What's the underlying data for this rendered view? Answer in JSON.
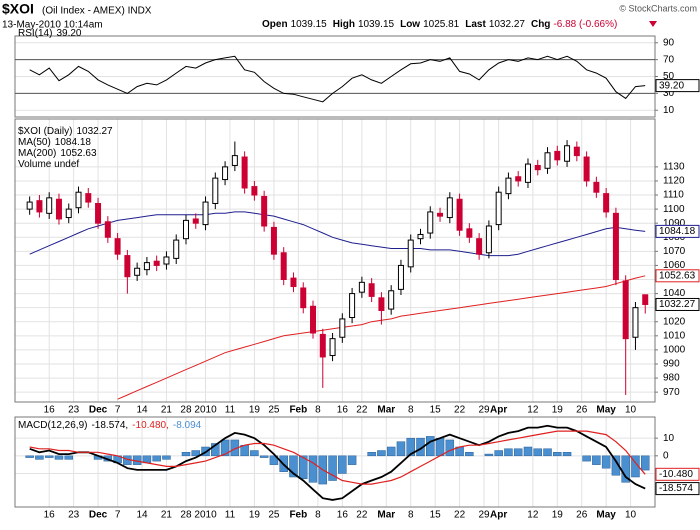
{
  "header": {
    "symbol": "$XOI",
    "name": "(Oil Index - AMEX) INDX",
    "date": "13-May-2010 10:14am",
    "watermark": "© StockCharts.com",
    "quote": [
      {
        "label": "Open",
        "value": "1039.15"
      },
      {
        "label": "High",
        "value": "1039.15"
      },
      {
        "label": "Low",
        "value": "1025.81"
      },
      {
        "label": "Last",
        "value": "1032.27"
      },
      {
        "label": "Chg",
        "value": "-6.88 (-0.66%)"
      }
    ]
  },
  "chart_data": [
    {
      "type": "line",
      "title": "RSI(14)",
      "x": [
        1,
        3,
        5,
        7,
        9,
        11,
        13,
        15,
        17,
        19,
        21,
        23,
        25,
        27,
        29,
        31,
        33,
        35,
        37,
        39,
        41,
        43,
        45,
        47,
        49,
        51,
        53,
        55,
        57,
        59,
        61,
        63,
        65,
        67,
        69,
        71,
        73,
        75,
        77,
        79,
        81,
        83,
        85,
        87,
        89,
        91,
        93,
        95,
        97,
        99,
        101,
        103,
        105,
        107,
        109,
        111,
        113,
        115,
        117,
        119,
        121,
        123,
        125,
        127
      ],
      "xlim": [
        -2,
        129
      ],
      "ylim": [
        2,
        98
      ],
      "yticks": [
        10,
        30,
        50,
        70,
        90
      ],
      "bands": [
        30,
        70
      ],
      "series": [
        {
          "name": "RSI(14)",
          "last_label": "39.20",
          "color": "#000000",
          "values": [
            58,
            52,
            60,
            45,
            52,
            62,
            56,
            46,
            40,
            35,
            30,
            38,
            42,
            40,
            46,
            54,
            62,
            60,
            66,
            70,
            72,
            74,
            58,
            55,
            44,
            36,
            30,
            29,
            26,
            23,
            20,
            30,
            38,
            48,
            52,
            46,
            42,
            50,
            58,
            65,
            66,
            70,
            68,
            72,
            56,
            53,
            46,
            58,
            66,
            70,
            68,
            72,
            70,
            74,
            70,
            74,
            68,
            58,
            54,
            48,
            32,
            24,
            38,
            39.2
          ]
        }
      ]
    },
    {
      "type": "candlestick",
      "x": [
        1,
        3,
        5,
        7,
        9,
        11,
        13,
        15,
        17,
        19,
        21,
        23,
        25,
        27,
        29,
        31,
        33,
        35,
        37,
        39,
        41,
        43,
        45,
        47,
        49,
        51,
        53,
        55,
        57,
        59,
        61,
        63,
        65,
        67,
        69,
        71,
        73,
        75,
        77,
        79,
        81,
        83,
        85,
        87,
        89,
        91,
        93,
        95,
        97,
        99,
        101,
        103,
        105,
        107,
        109,
        111,
        113,
        115,
        117,
        119,
        121,
        123,
        125,
        127
      ],
      "xlim": [
        -2,
        129
      ],
      "ylim": [
        963,
        1164
      ],
      "yticks": [
        970,
        980,
        990,
        1000,
        1010,
        1020,
        1030,
        1040,
        1050,
        1060,
        1070,
        1080,
        1090,
        1100,
        1110,
        1120,
        1130
      ],
      "xticks": [
        {
          "value": 5,
          "label": "16"
        },
        {
          "value": 10,
          "label": "23"
        },
        {
          "value": 15,
          "label": "Dec"
        },
        {
          "value": 19,
          "label": "7"
        },
        {
          "value": 24,
          "label": "14"
        },
        {
          "value": 29,
          "label": "21"
        },
        {
          "value": 33,
          "label": "28"
        },
        {
          "value": 37,
          "label": "2010"
        },
        {
          "value": 42,
          "label": "11"
        },
        {
          "value": 47,
          "label": "19"
        },
        {
          "value": 51,
          "label": "25"
        },
        {
          "value": 56,
          "label": "Feb"
        },
        {
          "value": 60,
          "label": "8"
        },
        {
          "value": 65,
          "label": "16"
        },
        {
          "value": 69,
          "label": "22"
        },
        {
          "value": 74,
          "label": "Mar"
        },
        {
          "value": 79,
          "label": "8"
        },
        {
          "value": 84,
          "label": "15"
        },
        {
          "value": 89,
          "label": "22"
        },
        {
          "value": 94,
          "label": "29"
        },
        {
          "value": 97,
          "label": "Apr"
        },
        {
          "value": 104,
          "label": "12"
        },
        {
          "value": 109,
          "label": "19"
        },
        {
          "value": 114,
          "label": "26"
        },
        {
          "value": 119,
          "label": "May"
        },
        {
          "value": 124,
          "label": "10"
        }
      ],
      "grid": true,
      "candles": {
        "name": "$XOI (Daily)",
        "last_label": "1032.27",
        "up_color": "#ffffff",
        "down_color": "#cc0033",
        "open": [
          1100,
          1106,
          1097,
          1107,
          1094,
          1101,
          1111,
          1104,
          1091,
          1079,
          1067,
          1053,
          1057,
          1063,
          1061,
          1065,
          1079,
          1093,
          1089,
          1104,
          1121,
          1131,
          1137,
          1116,
          1109,
          1087,
          1069,
          1051,
          1044,
          1031,
          1011,
          996,
          1009,
          1023,
          1041,
          1047,
          1037,
          1029,
          1043,
          1059,
          1079,
          1083,
          1097,
          1094,
          1107,
          1086,
          1079,
          1069,
          1089,
          1111,
          1123,
          1119,
          1131,
          1129,
          1141,
          1134,
          1144,
          1137,
          1119,
          1111,
          1097,
          1049,
          1009,
          1039.15
        ],
        "high": [
          1109,
          1110,
          1112,
          1111,
          1104,
          1116,
          1115,
          1108,
          1095,
          1083,
          1071,
          1062,
          1066,
          1067,
          1070,
          1082,
          1096,
          1097,
          1109,
          1126,
          1134,
          1148,
          1141,
          1120,
          1113,
          1091,
          1073,
          1055,
          1048,
          1035,
          1015,
          1012,
          1026,
          1044,
          1052,
          1051,
          1041,
          1046,
          1064,
          1082,
          1086,
          1102,
          1101,
          1112,
          1111,
          1090,
          1083,
          1092,
          1116,
          1126,
          1127,
          1136,
          1135,
          1144,
          1145,
          1149,
          1148,
          1141,
          1123,
          1115,
          1101,
          1053,
          1034,
          1039.15
        ],
        "low": [
          1096,
          1094,
          1093,
          1089,
          1090,
          1097,
          1101,
          1086,
          1076,
          1064,
          1040,
          1049,
          1053,
          1056,
          1057,
          1061,
          1075,
          1086,
          1085,
          1100,
          1117,
          1127,
          1111,
          1106,
          1084,
          1064,
          1046,
          1041,
          1026,
          1008,
          973,
          992,
          1005,
          1019,
          1037,
          1034,
          1018,
          1025,
          1039,
          1055,
          1075,
          1079,
          1091,
          1090,
          1081,
          1076,
          1064,
          1065,
          1085,
          1107,
          1116,
          1115,
          1124,
          1125,
          1131,
          1130,
          1134,
          1116,
          1108,
          1094,
          1046,
          968,
          1000,
          1025.81
        ],
        "close": [
          1105,
          1098,
          1108,
          1093,
          1100,
          1112,
          1105,
          1090,
          1080,
          1068,
          1052,
          1058,
          1062,
          1060,
          1066,
          1078,
          1092,
          1090,
          1105,
          1122,
          1130,
          1138,
          1115,
          1110,
          1088,
          1068,
          1050,
          1045,
          1030,
          1012,
          995,
          1008,
          1022,
          1040,
          1048,
          1038,
          1028,
          1042,
          1060,
          1078,
          1082,
          1098,
          1095,
          1108,
          1085,
          1080,
          1068,
          1088,
          1112,
          1122,
          1120,
          1132,
          1128,
          1140,
          1135,
          1145,
          1138,
          1120,
          1112,
          1098,
          1050,
          1008,
          1030,
          1032.27
        ]
      },
      "series": [
        {
          "name": "MA(50)",
          "last_label": "1084.18",
          "color": "#1f1f8f",
          "values": [
            1068,
            1071,
            1074,
            1077,
            1080,
            1083,
            1086,
            1088,
            1090,
            1092,
            1093,
            1094,
            1095,
            1096,
            1096,
            1096,
            1096,
            1096,
            1096,
            1097,
            1097,
            1098,
            1098,
            1097,
            1096,
            1095,
            1093,
            1091,
            1089,
            1086,
            1083,
            1080,
            1078,
            1076,
            1075,
            1074,
            1073,
            1072,
            1072,
            1072,
            1072,
            1071,
            1071,
            1071,
            1070,
            1069,
            1068,
            1067,
            1067,
            1067,
            1068,
            1070,
            1072,
            1074,
            1076,
            1078,
            1080,
            1082,
            1084,
            1086,
            1087,
            1086,
            1085,
            1084.18
          ]
        },
        {
          "name": "MA(200)",
          "last_label": "1052.63",
          "color": "#e02020",
          "values": [
            null,
            null,
            null,
            null,
            null,
            null,
            null,
            null,
            null,
            965,
            968,
            971,
            974,
            977,
            980,
            983,
            986,
            989,
            992,
            995,
            998,
            1000,
            1002,
            1004,
            1006,
            1008,
            1010,
            1011,
            1012,
            1013,
            1014,
            1015,
            1016,
            1017,
            1018,
            1020,
            1021,
            1022,
            1024,
            1025,
            1026,
            1027,
            1028,
            1029,
            1030,
            1031,
            1032,
            1033,
            1034,
            1035,
            1036,
            1037,
            1038,
            1039,
            1040,
            1041,
            1042,
            1043,
            1044,
            1045,
            1047,
            1049,
            1051,
            1052.63
          ]
        }
      ],
      "notes": [
        "Volume undef"
      ]
    },
    {
      "type": "macd",
      "title": "MACD(12,26,9)",
      "separator": ",",
      "x": [
        1,
        3,
        5,
        7,
        9,
        11,
        13,
        15,
        17,
        19,
        21,
        23,
        25,
        27,
        29,
        31,
        33,
        35,
        37,
        39,
        41,
        43,
        45,
        47,
        49,
        51,
        53,
        55,
        57,
        59,
        61,
        63,
        65,
        67,
        69,
        71,
        73,
        75,
        77,
        79,
        81,
        83,
        85,
        87,
        89,
        91,
        93,
        95,
        97,
        99,
        101,
        103,
        105,
        107,
        109,
        111,
        113,
        115,
        117,
        119,
        121,
        123,
        125,
        127
      ],
      "xlim": [
        -2,
        129
      ],
      "ylim": [
        -29,
        22
      ],
      "yticks": [
        -10,
        0,
        10
      ],
      "xticks": [
        {
          "value": 5,
          "label": "16"
        },
        {
          "value": 10,
          "label": "23"
        },
        {
          "value": 15,
          "label": "Dec"
        },
        {
          "value": 19,
          "label": "7"
        },
        {
          "value": 24,
          "label": "14"
        },
        {
          "value": 29,
          "label": "21"
        },
        {
          "value": 33,
          "label": "28"
        },
        {
          "value": 37,
          "label": "2010"
        },
        {
          "value": 42,
          "label": "11"
        },
        {
          "value": 47,
          "label": "19"
        },
        {
          "value": 51,
          "label": "25"
        },
        {
          "value": 56,
          "label": "Feb"
        },
        {
          "value": 60,
          "label": "8"
        },
        {
          "value": 65,
          "label": "16"
        },
        {
          "value": 69,
          "label": "22"
        },
        {
          "value": 74,
          "label": "Mar"
        },
        {
          "value": 79,
          "label": "8"
        },
        {
          "value": 84,
          "label": "15"
        },
        {
          "value": 89,
          "label": "22"
        },
        {
          "value": 94,
          "label": "29"
        },
        {
          "value": 97,
          "label": "Apr"
        },
        {
          "value": 104,
          "label": "12"
        },
        {
          "value": 109,
          "label": "19"
        },
        {
          "value": 114,
          "label": "26"
        },
        {
          "value": 119,
          "label": "May"
        },
        {
          "value": 124,
          "label": "10"
        }
      ],
      "grid": true,
      "series": [
        {
          "kind": "bar",
          "last_label": "-8.094",
          "color": "#4a8fd0",
          "values": [
            -1,
            -2,
            -1,
            -2,
            -2,
            0,
            0,
            -2,
            -3,
            -4,
            -5,
            -5,
            -4,
            -3,
            -2,
            0,
            2,
            3,
            5,
            7,
            9,
            9,
            6,
            3,
            -1,
            -5,
            -9,
            -12,
            -13,
            -15,
            -16,
            -14,
            -10,
            -5,
            0,
            2,
            3,
            5,
            8,
            10,
            10,
            11,
            10,
            9,
            5,
            2,
            0,
            1,
            3,
            4,
            4,
            5,
            4,
            4,
            2,
            2,
            0,
            -3,
            -5,
            -7,
            -11,
            -15,
            -12,
            -8.094
          ]
        },
        {
          "kind": "line",
          "last_label": "-18.574",
          "color": "#000000",
          "values": [
            4,
            2,
            3,
            1,
            1,
            2,
            2,
            0,
            -2,
            -4,
            -7,
            -8,
            -8,
            -8,
            -8,
            -6,
            -3,
            -1,
            2,
            6,
            10,
            13,
            12,
            10,
            6,
            1,
            -5,
            -10,
            -14,
            -19,
            -24,
            -25,
            -24,
            -20,
            -16,
            -14,
            -12,
            -9,
            -4,
            1,
            4,
            8,
            10,
            12,
            10,
            8,
            6,
            8,
            11,
            13,
            14,
            16,
            16,
            17,
            16,
            16,
            14,
            11,
            8,
            5,
            -3,
            -12,
            -16,
            -18.574
          ]
        },
        {
          "kind": "line",
          "last_label": "-10.480",
          "color": "#e02020",
          "values": [
            5,
            4,
            4,
            3,
            3,
            2,
            2,
            2,
            1,
            0,
            -2,
            -3,
            -4,
            -5,
            -6,
            -6,
            -5,
            -4,
            -3,
            -1,
            1,
            4,
            6,
            7,
            7,
            6,
            4,
            2,
            -1,
            -4,
            -8,
            -11,
            -14,
            -15,
            -16,
            -16,
            -15,
            -14,
            -12,
            -9,
            -6,
            -3,
            0,
            3,
            5,
            6,
            6,
            7,
            8,
            9,
            10,
            11,
            12,
            13,
            14,
            14,
            14,
            14,
            13,
            12,
            8,
            3,
            -4,
            -10.48
          ]
        }
      ]
    }
  ]
}
